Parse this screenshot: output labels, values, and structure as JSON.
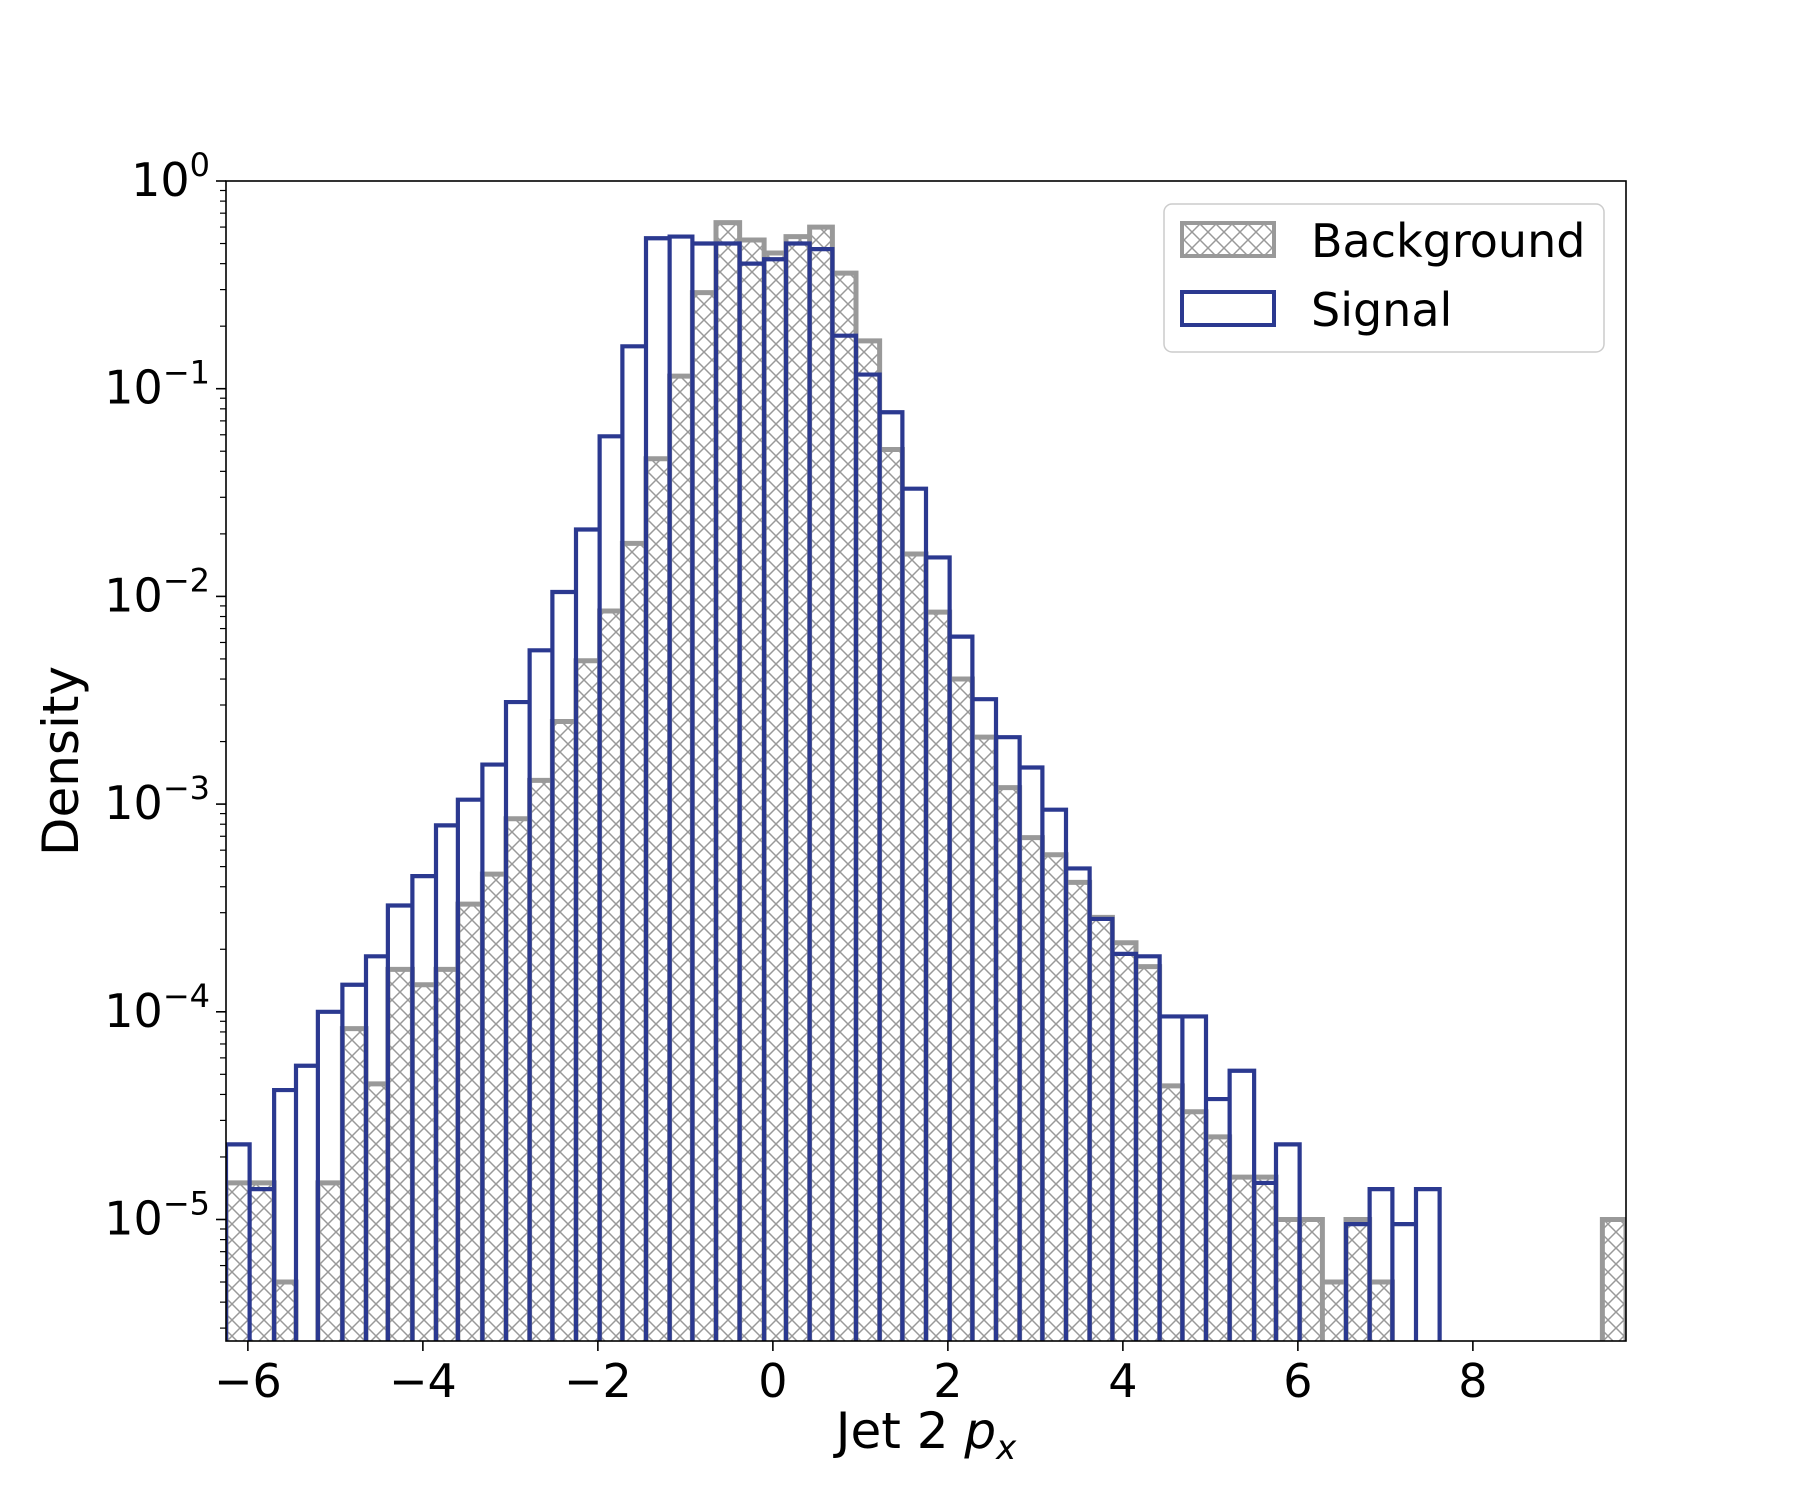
{
  "chart_data": {
    "type": "histogram",
    "xlabel_prefix": "Jet 2 ",
    "xlabel_var": "p",
    "xlabel_sub": "x",
    "ylabel": "Density",
    "yscale": "log",
    "xlim": [
      -6.25,
      9.75
    ],
    "ylim": [
      2.6e-06,
      1.0
    ],
    "x_ticks": [
      -6,
      -4,
      -2,
      0,
      2,
      4,
      6,
      8
    ],
    "x_tick_labels": [
      "−6",
      "−4",
      "−2",
      "0",
      "2",
      "4",
      "6",
      "8"
    ],
    "y_ticks": [
      {
        "value": 1.0,
        "base": "10",
        "exp": "0"
      },
      {
        "value": 0.1,
        "base": "10",
        "exp": "−1"
      },
      {
        "value": 0.01,
        "base": "10",
        "exp": "−2"
      },
      {
        "value": 0.001,
        "base": "10",
        "exp": "−3"
      },
      {
        "value": 0.0001,
        "base": "10",
        "exp": "−4"
      },
      {
        "value": 1e-05,
        "base": "10",
        "exp": "−5"
      }
    ],
    "legend": {
      "placement": "upper right",
      "entries": [
        "Background",
        "Signal"
      ]
    },
    "series": [
      {
        "name": "Background",
        "style": "hatched",
        "color": "#999999",
        "bins": [
          [
            -6.25,
            -5.7,
            1.5e-05
          ],
          [
            -5.7,
            -5.45,
            5e-06
          ],
          [
            -5.45,
            -5.2,
            0
          ],
          [
            -5.2,
            -4.92,
            1.5e-05
          ],
          [
            -4.92,
            -4.65,
            8.3e-05
          ],
          [
            -4.65,
            -4.4,
            4.5e-05
          ],
          [
            -4.4,
            -4.12,
            0.00016
          ],
          [
            -4.12,
            -3.85,
            0.000135
          ],
          [
            -3.85,
            -3.6,
            0.00016
          ],
          [
            -3.6,
            -3.32,
            0.00033
          ],
          [
            -3.32,
            -3.05,
            0.00046
          ],
          [
            -3.05,
            -2.78,
            0.00085
          ],
          [
            -2.78,
            -2.52,
            0.0013
          ],
          [
            -2.52,
            -2.25,
            0.0025
          ],
          [
            -2.25,
            -1.98,
            0.0049
          ],
          [
            -1.98,
            -1.72,
            0.0085
          ],
          [
            -1.72,
            -1.45,
            0.018
          ],
          [
            -1.45,
            -1.18,
            0.046
          ],
          [
            -1.18,
            -0.92,
            0.115
          ],
          [
            -0.92,
            -0.65,
            0.29
          ],
          [
            -0.65,
            -0.38,
            0.63
          ],
          [
            -0.38,
            -0.1,
            0.52
          ],
          [
            -0.1,
            0.15,
            0.45
          ],
          [
            0.15,
            0.42,
            0.54
          ],
          [
            0.42,
            0.68,
            0.6
          ],
          [
            0.68,
            0.95,
            0.36
          ],
          [
            0.95,
            1.22,
            0.17
          ],
          [
            1.22,
            1.48,
            0.051
          ],
          [
            1.48,
            1.75,
            0.016
          ],
          [
            1.75,
            2.02,
            0.0084
          ],
          [
            2.02,
            2.28,
            0.004
          ],
          [
            2.28,
            2.55,
            0.0021
          ],
          [
            2.55,
            2.82,
            0.0012
          ],
          [
            2.82,
            3.08,
            0.00069
          ],
          [
            3.08,
            3.35,
            0.00057
          ],
          [
            3.35,
            3.62,
            0.00042
          ],
          [
            3.62,
            3.88,
            0.000285
          ],
          [
            3.88,
            4.15,
            0.000215
          ],
          [
            4.15,
            4.42,
            0.000165
          ],
          [
            4.42,
            4.68,
            4.4e-05
          ],
          [
            4.68,
            4.95,
            3.3e-05
          ],
          [
            4.95,
            5.22,
            2.5e-05
          ],
          [
            5.22,
            5.5,
            1.6e-05
          ],
          [
            5.5,
            5.75,
            1.6e-05
          ],
          [
            5.75,
            6.02,
            1e-05
          ],
          [
            6.02,
            6.28,
            1e-05
          ],
          [
            6.28,
            6.55,
            5e-06
          ],
          [
            6.55,
            6.82,
            1e-05
          ],
          [
            6.82,
            7.08,
            5e-06
          ],
          [
            9.48,
            9.75,
            1e-05
          ]
        ]
      },
      {
        "name": "Signal",
        "style": "step",
        "color": "#2b3990",
        "bins": [
          [
            -6.25,
            -5.98,
            2.3e-05
          ],
          [
            -5.98,
            -5.7,
            1.4e-05
          ],
          [
            -5.7,
            -5.45,
            4.2e-05
          ],
          [
            -5.45,
            -5.2,
            5.5e-05
          ],
          [
            -5.2,
            -4.92,
            0.0001
          ],
          [
            -4.92,
            -4.65,
            0.000135
          ],
          [
            -4.65,
            -4.4,
            0.000185
          ],
          [
            -4.4,
            -4.12,
            0.000325
          ],
          [
            -4.12,
            -3.85,
            0.00045
          ],
          [
            -3.85,
            -3.6,
            0.00079
          ],
          [
            -3.6,
            -3.32,
            0.00105
          ],
          [
            -3.32,
            -3.05,
            0.00155
          ],
          [
            -3.05,
            -2.78,
            0.0031
          ],
          [
            -2.78,
            -2.52,
            0.0055
          ],
          [
            -2.52,
            -2.25,
            0.0105
          ],
          [
            -2.25,
            -1.98,
            0.021
          ],
          [
            -1.98,
            -1.72,
            0.059
          ],
          [
            -1.72,
            -1.45,
            0.16
          ],
          [
            -1.45,
            -1.18,
            0.53
          ],
          [
            -1.18,
            -0.92,
            0.54
          ],
          [
            -0.92,
            -0.65,
            0.5
          ],
          [
            -0.65,
            -0.38,
            0.5
          ],
          [
            -0.38,
            -0.1,
            0.4
          ],
          [
            -0.1,
            0.15,
            0.42
          ],
          [
            0.15,
            0.42,
            0.5
          ],
          [
            0.42,
            0.68,
            0.47
          ],
          [
            0.68,
            0.95,
            0.18
          ],
          [
            0.95,
            1.22,
            0.117
          ],
          [
            1.22,
            1.48,
            0.077
          ],
          [
            1.48,
            1.75,
            0.033
          ],
          [
            1.75,
            2.02,
            0.0154
          ],
          [
            2.02,
            2.28,
            0.0064
          ],
          [
            2.28,
            2.55,
            0.0032
          ],
          [
            2.55,
            2.82,
            0.0021
          ],
          [
            2.82,
            3.08,
            0.0015
          ],
          [
            3.08,
            3.35,
            0.00094
          ],
          [
            3.35,
            3.62,
            0.00049
          ],
          [
            3.62,
            3.88,
            0.00028
          ],
          [
            3.88,
            4.15,
            0.00019
          ],
          [
            4.15,
            4.42,
            0.000185
          ],
          [
            4.42,
            4.68,
            9.5e-05
          ],
          [
            4.68,
            4.95,
            9.5e-05
          ],
          [
            4.95,
            5.22,
            3.8e-05
          ],
          [
            5.22,
            5.5,
            5.2e-05
          ],
          [
            5.5,
            5.75,
            1.5e-05
          ],
          [
            5.75,
            6.02,
            2.3e-05
          ],
          [
            6.02,
            6.28,
            0
          ],
          [
            6.28,
            6.55,
            0
          ],
          [
            6.55,
            6.82,
            9.5e-06
          ],
          [
            6.82,
            7.08,
            1.4e-05
          ],
          [
            7.08,
            7.35,
            9.5e-06
          ],
          [
            7.35,
            7.62,
            1.4e-05
          ],
          [
            7.62,
            7.88,
            0
          ]
        ]
      }
    ]
  }
}
